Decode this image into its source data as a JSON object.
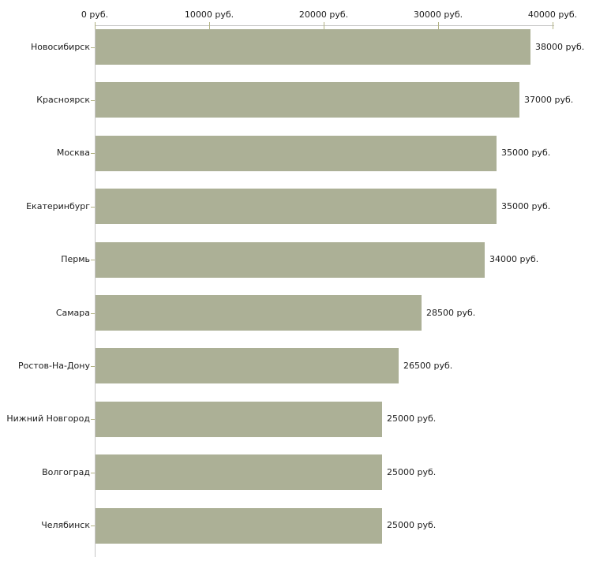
{
  "chart_data": {
    "type": "bar",
    "orientation": "horizontal",
    "title": "",
    "xlabel": "",
    "ylabel": "",
    "grid": false,
    "legend": false,
    "categories": [
      "Новосибирск",
      "Красноярск",
      "Москва",
      "Екатеринбург",
      "Пермь",
      "Самара",
      "Ростов-На-Дону",
      "Нижний Новгород",
      "Волгоград",
      "Челябинск"
    ],
    "values": [
      38000,
      37000,
      35000,
      35000,
      34000,
      28500,
      26500,
      25000,
      25000,
      25000
    ],
    "value_labels": [
      "38000 руб.",
      "37000 руб.",
      "35000 руб.",
      "35000 руб.",
      "34000 руб.",
      "28500 руб.",
      "26500 руб.",
      "25000 руб.",
      "25000 руб.",
      "25000 руб."
    ],
    "x_axis": {
      "position": "top",
      "xlim": [
        0,
        40000
      ],
      "tick_values": [
        0,
        10000,
        20000,
        30000,
        40000
      ],
      "tick_labels": [
        "0 руб.",
        "10000 руб.",
        "20000 руб.",
        "30000 руб.",
        "40000 руб."
      ]
    },
    "colors": {
      "bar": "#acb096",
      "axis_line": "#c6c6c6",
      "tick_mark": "#b2b383",
      "text": "#1c1c1c",
      "background": "#ffffff"
    }
  }
}
